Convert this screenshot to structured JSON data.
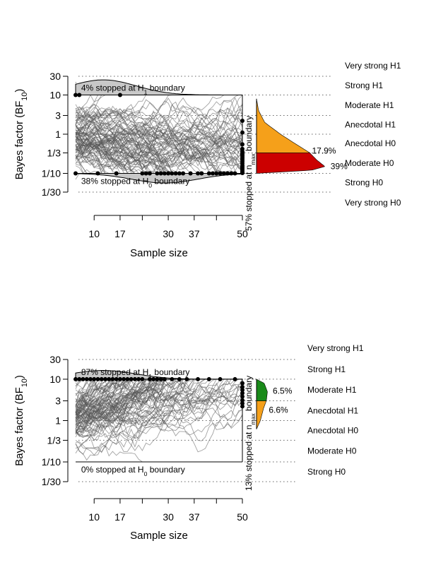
{
  "chart_data": [
    {
      "type": "line",
      "description_role": "sequential Bayes factor design, null effect",
      "ylabel": "Bayes factor (BF",
      "ylabel_sub": "10",
      "ylabel_close": ")",
      "xlabel": "Sample size",
      "y_ticks": [
        {
          "label": "30",
          "value": 30
        },
        {
          "label": "10",
          "value": 10
        },
        {
          "label": "3",
          "value": 3
        },
        {
          "label": "1",
          "value": 1
        },
        {
          "label": "1/3",
          "value": 0.3333
        },
        {
          "label": "1/10",
          "value": 0.1
        },
        {
          "label": "1/30",
          "value": 0.0333
        }
      ],
      "x_ticks": [
        10,
        17,
        30,
        37,
        50
      ],
      "x_minor_ticks": [
        10,
        17,
        23,
        30,
        37,
        43,
        50
      ],
      "xlim": [
        5,
        50
      ],
      "ylim": [
        0.0333,
        30
      ],
      "evidence_labels": [
        "Very strong H1",
        "Strong H1",
        "Moderate H1",
        "Anecdotal H1",
        "Anecdotal H0",
        "Moderate H0",
        "Strong H0",
        "Very strong H0"
      ],
      "upper_boundary": {
        "text_pre": "4% stopped at H",
        "sub": "1",
        "text_post": " boundary",
        "percent": 4
      },
      "lower_boundary": {
        "text_pre": "38% stopped at H",
        "sub": "0",
        "text_post": " boundary",
        "percent": 38
      },
      "nmax_boundary": {
        "text_pre": "57% stopped at n",
        "sub": "max",
        "text_post": " boundary",
        "percent": 57
      },
      "stop_upper_n": [
        5,
        6,
        17
      ],
      "stop_lower_n": [
        5,
        11,
        16,
        23,
        24,
        25,
        27,
        28,
        29,
        30,
        31,
        32,
        33,
        34,
        36,
        38,
        39,
        41,
        42,
        43,
        44,
        45,
        46,
        47,
        48
      ],
      "nmax_points_bf": [
        2.2,
        1.1,
        0.55,
        0.42,
        0.36,
        0.33,
        0.3,
        0.28,
        0.26,
        0.24,
        0.22,
        0.2,
        0.18,
        0.16,
        0.15,
        0.14,
        0.13,
        0.12,
        0.11,
        0.105,
        0.102
      ],
      "nmax_density": [
        {
          "bf": 8.0,
          "d": 0.0
        },
        {
          "bf": 4.0,
          "d": 0.03
        },
        {
          "bf": 2.0,
          "d": 0.12
        },
        {
          "bf": 1.0,
          "d": 0.35
        },
        {
          "bf": 0.5,
          "d": 0.62
        },
        {
          "bf": 0.3333,
          "d": 0.78
        },
        {
          "bf": 0.22,
          "d": 0.88
        },
        {
          "bf": 0.15,
          "d": 1.0
        },
        {
          "bf": 0.12,
          "d": 0.8
        },
        {
          "bf": 0.1,
          "d": 0.0
        }
      ],
      "nmax_segments": [
        {
          "from_bf": 0.3333,
          "to_bf": 8.0,
          "color": "#f5a01a",
          "label": "17.9%",
          "label_bf": 0.38
        },
        {
          "from_bf": 0.1,
          "to_bf": 0.3333,
          "color": "#cc0000",
          "label": "39%",
          "label_bf": 0.15
        }
      ],
      "top_density_max_pct": 0.95,
      "bottom_density_max_pct": 0.7,
      "n_trajectories": 100,
      "seed": 11,
      "drift": -0.028
    },
    {
      "type": "line",
      "description_role": "sequential Bayes factor design, true effect",
      "ylabel": "Bayes factor (BF",
      "ylabel_sub": "10",
      "ylabel_close": ")",
      "xlabel": "Sample size",
      "y_ticks": [
        {
          "label": "30",
          "value": 30
        },
        {
          "label": "10",
          "value": 10
        },
        {
          "label": "3",
          "value": 3
        },
        {
          "label": "1",
          "value": 1
        },
        {
          "label": "1/3",
          "value": 0.3333
        },
        {
          "label": "1/10",
          "value": 0.1
        },
        {
          "label": "1/30",
          "value": 0.0333
        }
      ],
      "x_ticks": [
        10,
        17,
        30,
        37,
        50
      ],
      "x_minor_ticks": [
        10,
        17,
        23,
        30,
        37,
        43,
        50
      ],
      "xlim": [
        5,
        50
      ],
      "ylim": [
        0.0333,
        30
      ],
      "evidence_labels": [
        "Very strong H1",
        "Strong H1",
        "Moderate H1",
        "Anecdotal H1",
        "Anecdotal H0",
        "Moderate H0",
        "Strong H0"
      ],
      "upper_boundary": {
        "text_pre": "87% stopped at H",
        "sub": "1",
        "text_post": " boundary",
        "percent": 87
      },
      "lower_boundary": {
        "text_pre": "0% stopped at H",
        "sub": "0",
        "text_post": " boundary",
        "percent": 0
      },
      "nmax_boundary": {
        "text_pre": "13% stopped at n",
        "sub": "max",
        "text_post": " boundary",
        "percent": 13
      },
      "stop_upper_n": [
        5,
        6,
        7,
        8,
        9,
        10,
        11,
        12,
        13,
        14,
        15,
        16,
        17,
        18,
        19,
        20,
        21,
        22,
        23,
        25,
        26,
        27,
        28,
        29,
        31,
        33,
        35,
        38,
        41,
        44,
        48
      ],
      "stop_lower_n": [],
      "nmax_points_bf": [
        8.0,
        6.5,
        5.5,
        4.6,
        3.8,
        3.1,
        2.6,
        2.2
      ],
      "nmax_density": [
        {
          "bf": 10.0,
          "d": 0.0
        },
        {
          "bf": 8.0,
          "d": 0.7
        },
        {
          "bf": 5.0,
          "d": 1.0
        },
        {
          "bf": 3.0,
          "d": 0.9
        },
        {
          "bf": 2.0,
          "d": 0.65
        },
        {
          "bf": 1.0,
          "d": 0.35
        },
        {
          "bf": 0.62,
          "d": 0.0
        }
      ],
      "nmax_segments": [
        {
          "from_bf": 3.0,
          "to_bf": 10.0,
          "color": "#1a8a1a",
          "label": "6.5%",
          "label_bf": 5.2
        },
        {
          "from_bf": 0.62,
          "to_bf": 3.0,
          "color": "#f5a01a",
          "label": "6.6%",
          "label_bf": 1.8
        }
      ],
      "top_density_max_pct": 0.55,
      "bottom_density_max_pct": 0.0,
      "n_trajectories": 100,
      "seed": 29,
      "drift": 0.075
    }
  ]
}
